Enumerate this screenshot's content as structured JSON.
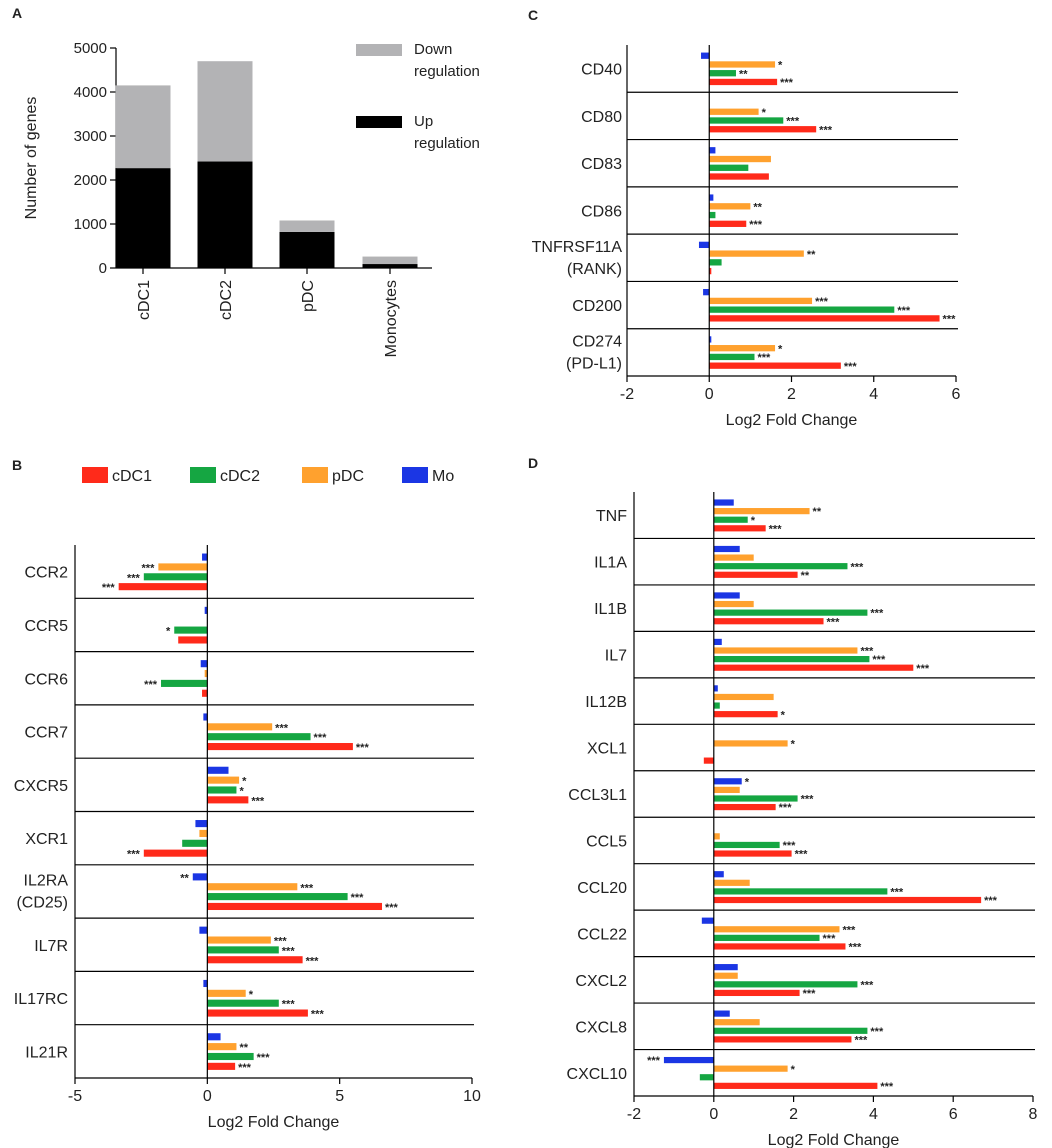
{
  "legend": [
    {
      "name": "cDC1",
      "color": "#ff2a1a"
    },
    {
      "name": "cDC2",
      "color": "#15a642"
    },
    {
      "name": "pDC",
      "color": "#ffa12e"
    },
    {
      "name": "Mo",
      "color": "#1b36e4"
    }
  ],
  "chart_data": [
    {
      "panel": "A",
      "type": "bar",
      "stacked": true,
      "categories": [
        "cDC1",
        "cDC2",
        "pDC",
        "Monocytes"
      ],
      "series": [
        {
          "name": "Up regulation",
          "color": "#000000",
          "values": [
            2270,
            2420,
            820,
            90
          ]
        },
        {
          "name": "Down regulation",
          "color": "#b3b3b5",
          "values": [
            1880,
            2280,
            260,
            170
          ]
        }
      ],
      "legend": [
        "Down regulation",
        "Up regulation"
      ],
      "legend_lines": [
        [
          "Down",
          "regulation"
        ],
        [
          "Up",
          "regulation"
        ]
      ],
      "ylabel": "Number of genes",
      "ylim": [
        0,
        5000
      ],
      "yticks": [
        0,
        1000,
        2000,
        3000,
        4000,
        5000
      ]
    },
    {
      "panel": "B",
      "type": "bar",
      "orientation": "horizontal",
      "xlabel": "Log2 Fold Change",
      "xlim": [
        -5,
        10
      ],
      "xticks": [
        -5,
        0,
        5,
        10
      ],
      "series_order": [
        "Mo",
        "pDC",
        "cDC2",
        "cDC1"
      ],
      "genes": [
        {
          "label": [
            "CCR2"
          ],
          "values": {
            "Mo": -0.2,
            "pDC": -1.85,
            "cDC2": -2.4,
            "cDC1": -3.35
          },
          "sig": {
            "pDC": "***",
            "cDC2": "***",
            "cDC1": "***"
          }
        },
        {
          "label": [
            "CCR5"
          ],
          "values": {
            "Mo": -0.1,
            "pDC": 0,
            "cDC2": -1.25,
            "cDC1": -1.1
          },
          "sig": {
            "cDC2": "*"
          }
        },
        {
          "label": [
            "CCR6"
          ],
          "values": {
            "Mo": -0.25,
            "pDC": -0.1,
            "cDC2": -1.75,
            "cDC1": -0.2
          },
          "sig": {
            "cDC2": "***"
          }
        },
        {
          "label": [
            "CCR7"
          ],
          "values": {
            "Mo": -0.15,
            "pDC": 2.45,
            "cDC2": 3.9,
            "cDC1": 5.5
          },
          "sig": {
            "pDC": "***",
            "cDC2": "***",
            "cDC1": "***"
          }
        },
        {
          "label": [
            "CXCR5"
          ],
          "values": {
            "Mo": 0.8,
            "pDC": 1.2,
            "cDC2": 1.1,
            "cDC1": 1.55
          },
          "sig": {
            "pDC": "*",
            "cDC2": "*",
            "cDC1": "***"
          }
        },
        {
          "label": [
            "XCR1"
          ],
          "values": {
            "Mo": -0.45,
            "pDC": -0.3,
            "cDC2": -0.95,
            "cDC1": -2.4
          },
          "sig": {
            "cDC1": "***"
          }
        },
        {
          "label": [
            "IL2RA",
            "(CD25)"
          ],
          "values": {
            "Mo": -0.55,
            "pDC": 3.4,
            "cDC2": 5.3,
            "cDC1": 6.6
          },
          "sig": {
            "Mo": "**",
            "pDC": "***",
            "cDC2": "***",
            "cDC1": "***"
          }
        },
        {
          "label": [
            "IL7R"
          ],
          "values": {
            "Mo": -0.3,
            "pDC": 2.4,
            "cDC2": 2.7,
            "cDC1": 3.6
          },
          "sig": {
            "pDC": "***",
            "cDC2": "***",
            "cDC1": "***"
          }
        },
        {
          "label": [
            "IL17RC"
          ],
          "values": {
            "Mo": -0.15,
            "pDC": 1.45,
            "cDC2": 2.7,
            "cDC1": 3.8
          },
          "sig": {
            "pDC": "*",
            "cDC2": "***",
            "cDC1": "***"
          }
        },
        {
          "label": [
            "IL21R"
          ],
          "values": {
            "Mo": 0.5,
            "pDC": 1.1,
            "cDC2": 1.75,
            "cDC1": 1.05
          },
          "sig": {
            "pDC": "**",
            "cDC2": "***",
            "cDC1": "***"
          }
        }
      ]
    },
    {
      "panel": "C",
      "type": "bar",
      "orientation": "horizontal",
      "xlabel": "Log2 Fold Change",
      "xlim": [
        -2,
        6
      ],
      "xticks": [
        -2,
        0,
        2,
        4,
        6
      ],
      "series_order": [
        "Mo",
        "pDC",
        "cDC2",
        "cDC1"
      ],
      "genes": [
        {
          "label": [
            "CD40"
          ],
          "values": {
            "Mo": -0.2,
            "pDC": 1.6,
            "cDC2": 0.65,
            "cDC1": 1.65
          },
          "sig": {
            "pDC": "*",
            "cDC2": "**",
            "cDC1": "***"
          }
        },
        {
          "label": [
            "CD80"
          ],
          "values": {
            "Mo": 0,
            "pDC": 1.2,
            "cDC2": 1.8,
            "cDC1": 2.6
          },
          "sig": {
            "pDC": "*",
            "cDC2": "***",
            "cDC1": "***"
          }
        },
        {
          "label": [
            "CD83"
          ],
          "values": {
            "Mo": 0.15,
            "pDC": 1.5,
            "cDC2": 0.95,
            "cDC1": 1.45
          },
          "sig": {}
        },
        {
          "label": [
            "CD86"
          ],
          "values": {
            "Mo": 0.1,
            "pDC": 1.0,
            "cDC2": 0.15,
            "cDC1": 0.9
          },
          "sig": {
            "pDC": "**",
            "cDC1": "***"
          }
        },
        {
          "label": [
            "TNFRSF11A",
            "(RANK)"
          ],
          "values": {
            "Mo": -0.25,
            "pDC": 2.3,
            "cDC2": 0.3,
            "cDC1": 0.05
          },
          "sig": {
            "pDC": "**"
          }
        },
        {
          "label": [
            "CD200"
          ],
          "values": {
            "Mo": -0.15,
            "pDC": 2.5,
            "cDC2": 4.5,
            "cDC1": 5.6
          },
          "sig": {
            "pDC": "***",
            "cDC2": "***",
            "cDC1": "***"
          }
        },
        {
          "label": [
            "CD274",
            "(PD-L1)"
          ],
          "values": {
            "Mo": 0.05,
            "pDC": 1.6,
            "cDC2": 1.1,
            "cDC1": 3.2
          },
          "sig": {
            "pDC": "*",
            "cDC2": "***",
            "cDC1": "***"
          }
        }
      ]
    },
    {
      "panel": "D",
      "type": "bar",
      "orientation": "horizontal",
      "xlabel": "Log2 Fold Change",
      "xlim": [
        -2,
        8
      ],
      "xticks": [
        -2,
        0,
        2,
        4,
        6,
        8
      ],
      "series_order": [
        "Mo",
        "pDC",
        "cDC2",
        "cDC1"
      ],
      "genes": [
        {
          "label": [
            "TNF"
          ],
          "values": {
            "Mo": 0.5,
            "pDC": 2.4,
            "cDC2": 0.85,
            "cDC1": 1.3
          },
          "sig": {
            "pDC": "**",
            "cDC2": "*",
            "cDC1": "***"
          }
        },
        {
          "label": [
            "IL1A"
          ],
          "values": {
            "Mo": 0.65,
            "pDC": 1.0,
            "cDC2": 3.35,
            "cDC1": 2.1
          },
          "sig": {
            "cDC2": "***",
            "cDC1": "**"
          }
        },
        {
          "label": [
            "IL1B"
          ],
          "values": {
            "Mo": 0.65,
            "pDC": 1.0,
            "cDC2": 3.85,
            "cDC1": 2.75
          },
          "sig": {
            "cDC2": "***",
            "cDC1": "***"
          }
        },
        {
          "label": [
            "IL7"
          ],
          "values": {
            "Mo": 0.2,
            "pDC": 3.6,
            "cDC2": 3.9,
            "cDC1": 5.0
          },
          "sig": {
            "pDC": "***",
            "cDC2": "***",
            "cDC1": "***"
          }
        },
        {
          "label": [
            "IL12B"
          ],
          "values": {
            "Mo": 0.1,
            "pDC": 1.5,
            "cDC2": 0.15,
            "cDC1": 1.6
          },
          "sig": {
            "cDC1": "*"
          }
        },
        {
          "label": [
            "XCL1"
          ],
          "values": {
            "Mo": 0,
            "pDC": 1.85,
            "cDC2": 0,
            "cDC1": -0.25
          },
          "sig": {
            "pDC": "*"
          }
        },
        {
          "label": [
            "CCL3L1"
          ],
          "values": {
            "Mo": 0.7,
            "pDC": 0.65,
            "cDC2": 2.1,
            "cDC1": 1.55
          },
          "sig": {
            "Mo": "*",
            "cDC2": "***",
            "cDC1": "***"
          }
        },
        {
          "label": [
            "CCL5"
          ],
          "values": {
            "Mo": 0,
            "pDC": 0.15,
            "cDC2": 1.65,
            "cDC1": 1.95
          },
          "sig": {
            "cDC2": "***",
            "cDC1": "***"
          }
        },
        {
          "label": [
            "CCL20"
          ],
          "values": {
            "Mo": 0.25,
            "pDC": 0.9,
            "cDC2": 4.35,
            "cDC1": 6.7
          },
          "sig": {
            "cDC2": "***",
            "cDC1": "***"
          }
        },
        {
          "label": [
            "CCL22"
          ],
          "values": {
            "Mo": -0.3,
            "pDC": 3.15,
            "cDC2": 2.65,
            "cDC1": 3.3
          },
          "sig": {
            "pDC": "***",
            "cDC2": "***",
            "cDC1": "***"
          }
        },
        {
          "label": [
            "CXCL2"
          ],
          "values": {
            "Mo": 0.6,
            "pDC": 0.6,
            "cDC2": 3.6,
            "cDC1": 2.15
          },
          "sig": {
            "cDC2": "***",
            "cDC1": "***"
          }
        },
        {
          "label": [
            "CXCL8"
          ],
          "values": {
            "Mo": 0.4,
            "pDC": 1.15,
            "cDC2": 3.85,
            "cDC1": 3.45
          },
          "sig": {
            "cDC2": "***",
            "cDC1": "***"
          }
        },
        {
          "label": [
            "CXCL10"
          ],
          "values": {
            "Mo": -1.25,
            "pDC": 1.85,
            "cDC2": -0.35,
            "cDC1": 4.1
          },
          "sig": {
            "Mo": "***",
            "pDC": "*",
            "cDC1": "***"
          }
        }
      ]
    }
  ]
}
